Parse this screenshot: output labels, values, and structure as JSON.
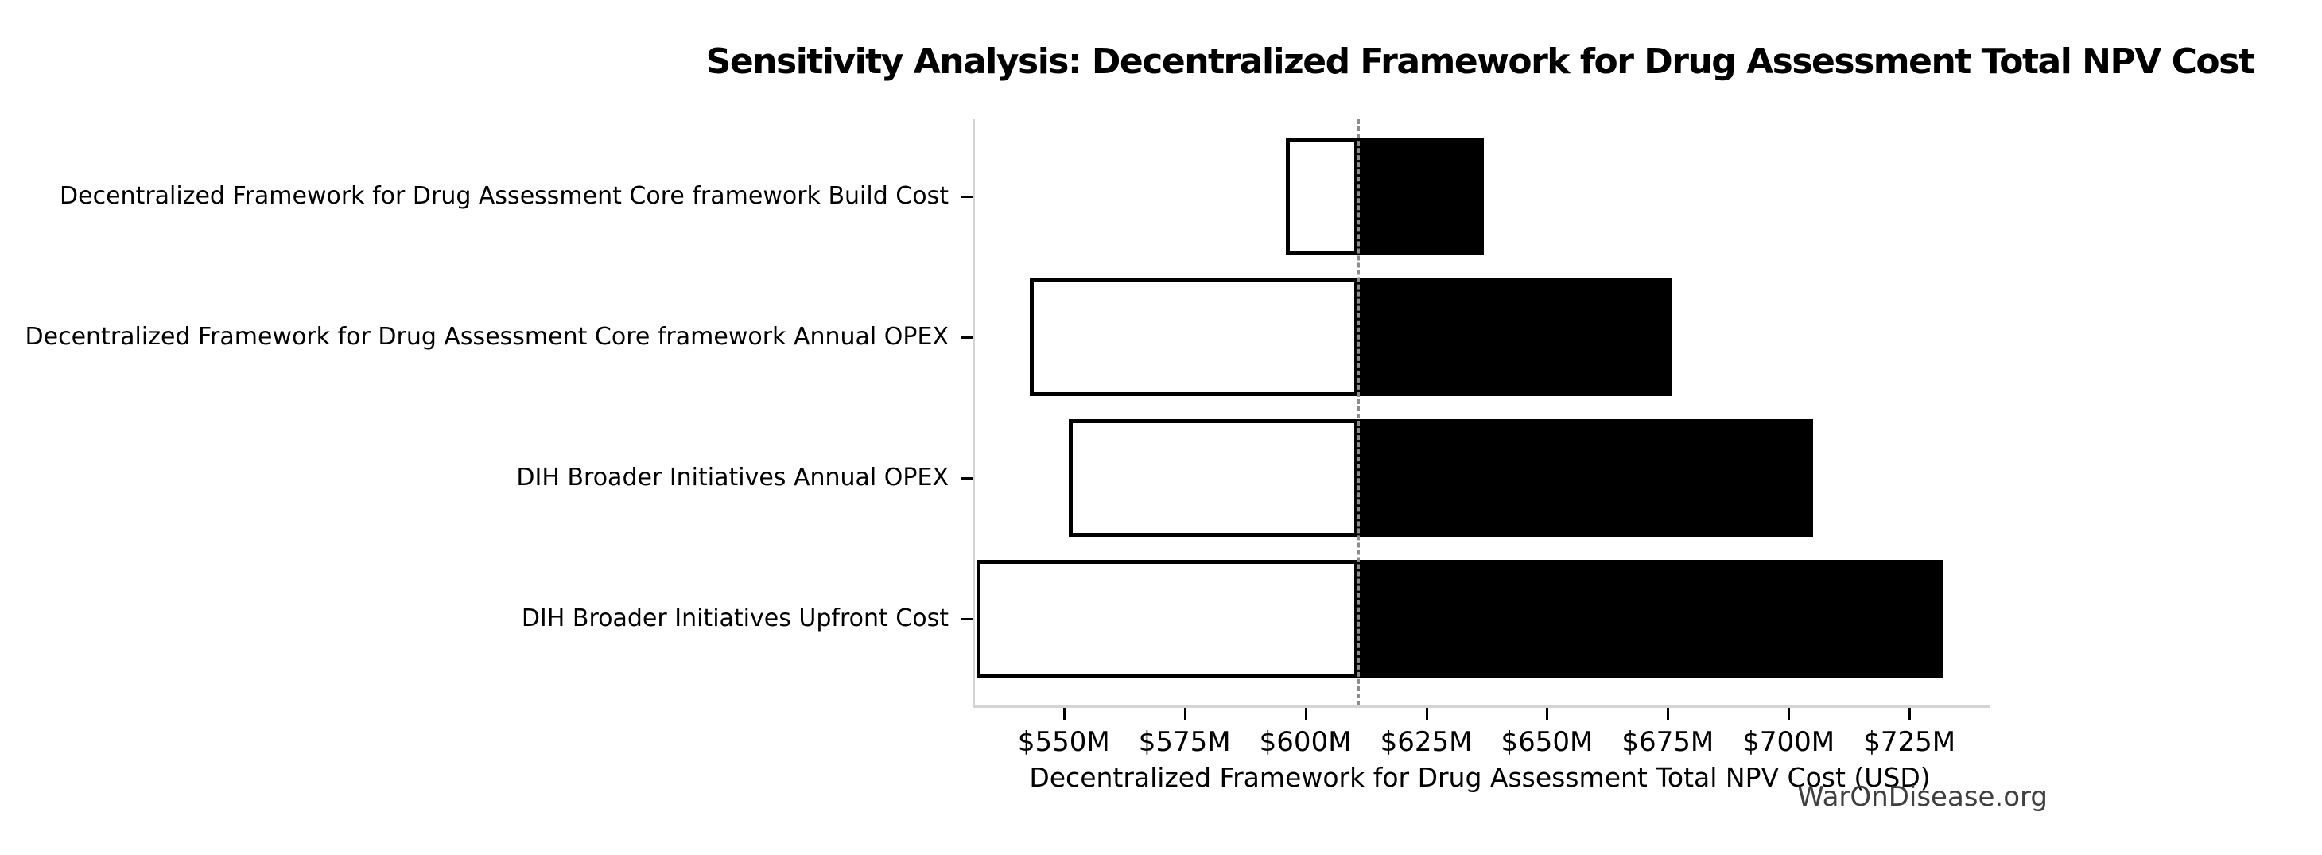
{
  "page": {
    "background": "#ffffff",
    "watermark_text": "WarOnDisease.org"
  },
  "chart_data": {
    "type": "bar",
    "variant": "tornado-sensitivity",
    "title": "Sensitivity Analysis: Decentralized Framework for Drug Assessment Total NPV Cost",
    "xlabel": "Decentralized Framework for Drug Assessment Total NPV Cost (USD)",
    "ylabel": "",
    "unit": "USD millions",
    "baseline": 611,
    "categories": [
      "Decentralized Framework for Drug Assessment Core framework Build Cost",
      "Decentralized Framework for Drug Assessment Core framework Annual OPEX",
      "DIH Broader Initiatives Annual OPEX",
      "DIH Broader Initiatives Upfront Cost"
    ],
    "series": [
      {
        "name": "low_value",
        "values": [
          596,
          543,
          551,
          532
        ]
      },
      {
        "name": "high_value",
        "values": [
          637,
          676,
          705,
          732
        ]
      }
    ],
    "x_ticks": [
      {
        "value": 550,
        "label": "$550M"
      },
      {
        "value": 575,
        "label": "$575M"
      },
      {
        "value": 600,
        "label": "$600M"
      },
      {
        "value": 625,
        "label": "$625M"
      },
      {
        "value": 650,
        "label": "$650M"
      },
      {
        "value": 675,
        "label": "$675M"
      },
      {
        "value": 700,
        "label": "$700M"
      },
      {
        "value": 725,
        "label": "$725M"
      }
    ],
    "xlim": [
      531.6,
      741.6
    ],
    "grid": false,
    "legend_position": "none",
    "colors": {
      "bar_low_fill": "#ffffff",
      "bar_high_fill": "#000000",
      "bar_edge": "#000000",
      "baseline_line": "#8c8c8c",
      "axis_spine": "#d4d4d4",
      "tick_mark": "#000000",
      "watermark": "#3f3f3f"
    }
  }
}
